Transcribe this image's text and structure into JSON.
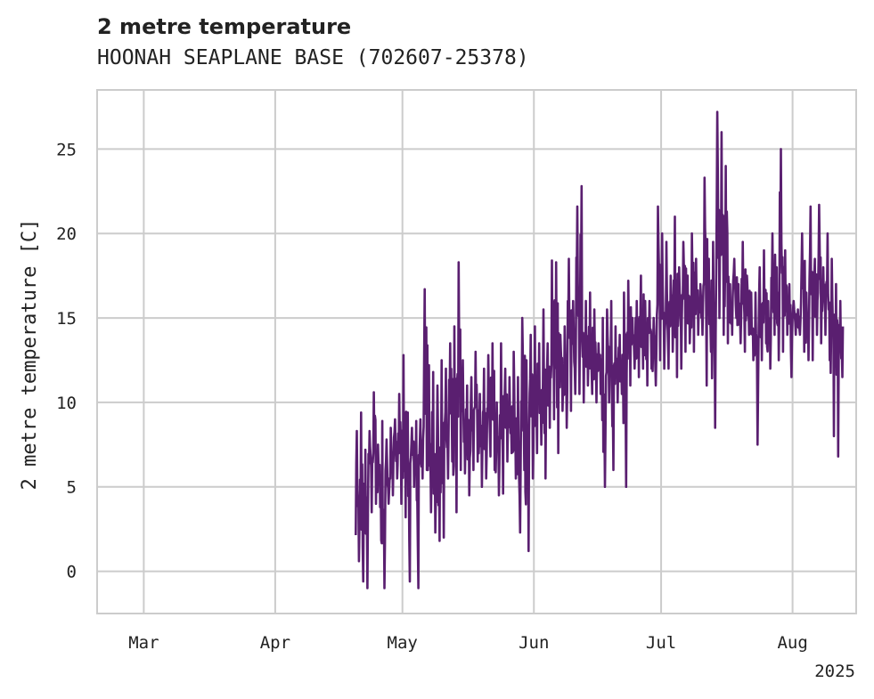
{
  "chart_data": {
    "type": "line",
    "title": "2 metre temperature",
    "subtitle": "HOONAH SEAPLANE BASE (702607-25378)",
    "ylabel": "2 metre temperature [C]",
    "xlabel": "",
    "year_label": "2025",
    "xlim": [
      "2025-02-18",
      "2025-08-16"
    ],
    "ylim": [
      -2.5,
      28.5
    ],
    "x_ticks": [
      {
        "date": "2025-03-01",
        "label": "Mar"
      },
      {
        "date": "2025-04-01",
        "label": "Apr"
      },
      {
        "date": "2025-05-01",
        "label": "May"
      },
      {
        "date": "2025-06-01",
        "label": "Jun"
      },
      {
        "date": "2025-07-01",
        "label": "Jul"
      },
      {
        "date": "2025-08-01",
        "label": "Aug"
      }
    ],
    "y_ticks": [
      0,
      5,
      10,
      15,
      20,
      25
    ],
    "grid": true,
    "color": "#5a1f70",
    "series": [
      {
        "name": "",
        "x": [
          "2025-04-20",
          "2025-04-21",
          "2025-04-22",
          "2025-04-23",
          "2025-04-24",
          "2025-04-25",
          "2025-04-26",
          "2025-04-27",
          "2025-04-28",
          "2025-04-29",
          "2025-04-30",
          "2025-05-01",
          "2025-05-02",
          "2025-05-03",
          "2025-05-04",
          "2025-05-05",
          "2025-05-06",
          "2025-05-07",
          "2025-05-08",
          "2025-05-09",
          "2025-05-10",
          "2025-05-11",
          "2025-05-12",
          "2025-05-13",
          "2025-05-14",
          "2025-05-15",
          "2025-05-16",
          "2025-05-17",
          "2025-05-18",
          "2025-05-19",
          "2025-05-20",
          "2025-05-21",
          "2025-05-22",
          "2025-05-23",
          "2025-05-24",
          "2025-05-25",
          "2025-05-26",
          "2025-05-27",
          "2025-05-28",
          "2025-05-29",
          "2025-05-30",
          "2025-05-31",
          "2025-06-01",
          "2025-06-02",
          "2025-06-03",
          "2025-06-04",
          "2025-06-05",
          "2025-06-06",
          "2025-06-07",
          "2025-06-08",
          "2025-06-09",
          "2025-06-10",
          "2025-06-11",
          "2025-06-12",
          "2025-06-13",
          "2025-06-14",
          "2025-06-15",
          "2025-06-16",
          "2025-06-17",
          "2025-06-18",
          "2025-06-19",
          "2025-06-20",
          "2025-06-21",
          "2025-06-22",
          "2025-06-23",
          "2025-06-24",
          "2025-06-25",
          "2025-06-26",
          "2025-06-27",
          "2025-06-28",
          "2025-06-29",
          "2025-06-30",
          "2025-07-01",
          "2025-07-02",
          "2025-07-03",
          "2025-07-04",
          "2025-07-05",
          "2025-07-06",
          "2025-07-07",
          "2025-07-08",
          "2025-07-09",
          "2025-07-10",
          "2025-07-11",
          "2025-07-12",
          "2025-07-13",
          "2025-07-14",
          "2025-07-15",
          "2025-07-16",
          "2025-07-17",
          "2025-07-18",
          "2025-07-19",
          "2025-07-20",
          "2025-07-21",
          "2025-07-22",
          "2025-07-23",
          "2025-07-24",
          "2025-07-25",
          "2025-07-26",
          "2025-07-27",
          "2025-07-28",
          "2025-07-29",
          "2025-07-30",
          "2025-07-31",
          "2025-08-01",
          "2025-08-02",
          "2025-08-03",
          "2025-08-04",
          "2025-08-05",
          "2025-08-06",
          "2025-08-07",
          "2025-08-08",
          "2025-08-09",
          "2025-08-10",
          "2025-08-11",
          "2025-08-12",
          "2025-08-13",
          "2025-08-14"
        ],
        "min": [
          0.6,
          -0.6,
          -1.0,
          3.5,
          4.0,
          3.8,
          -1.0,
          4.0,
          4.5,
          5.5,
          4.0,
          3.2,
          -0.6,
          5.0,
          -1.0,
          5.5,
          6.0,
          3.5,
          2.3,
          1.8,
          2.0,
          5.5,
          6.5,
          3.5,
          6.0,
          5.8,
          4.5,
          6.0,
          6.5,
          5.0,
          5.5,
          6.8,
          6.0,
          4.5,
          4.6,
          6.5,
          7.0,
          5.5,
          2.3,
          6.0,
          1.2,
          5.5,
          7.0,
          7.5,
          5.5,
          8.5,
          9.0,
          7.0,
          9.5,
          8.5,
          9.5,
          10.5,
          10.5,
          10.0,
          11.0,
          10.5,
          10.0,
          10.5,
          5.0,
          10.0,
          6.0,
          10.0,
          10.5,
          5.0,
          11.0,
          12.0,
          11.5,
          12.0,
          11.0,
          12.0,
          11.0,
          12.5,
          12.0,
          12.0,
          13.0,
          11.5,
          12.0,
          13.0,
          13.5,
          13.0,
          14.0,
          14.0,
          11.0,
          13.0,
          8.5,
          15.0,
          14.0,
          13.5,
          14.0,
          15.0,
          13.5,
          13.0,
          14.0,
          12.5,
          7.5,
          12.5,
          13.5,
          12.0,
          14.0,
          12.5,
          13.0,
          14.0,
          11.5,
          14.0,
          14.0,
          13.0,
          12.5,
          12.5,
          14.0,
          13.5,
          14.0,
          12.5,
          8.0,
          6.8,
          11.5
        ],
        "max": [
          8.3,
          9.4,
          7.2,
          8.3,
          10.6,
          7.5,
          8.9,
          7.8,
          8.5,
          9.0,
          10.5,
          12.8,
          9.4,
          8.5,
          8.9,
          9.0,
          16.7,
          12.2,
          11.8,
          11.0,
          12.5,
          12.0,
          13.5,
          14.5,
          18.3,
          12.5,
          11.0,
          11.5,
          13.0,
          10.5,
          12.0,
          12.8,
          13.5,
          10.0,
          13.5,
          12.0,
          11.5,
          13.0,
          11.5,
          15.0,
          12.5,
          14.0,
          14.5,
          13.5,
          15.5,
          13.5,
          18.4,
          18.3,
          14.0,
          14.5,
          18.5,
          16.0,
          21.6,
          22.8,
          16.0,
          16.5,
          15.5,
          13.5,
          15.0,
          15.5,
          16.0,
          14.5,
          14.0,
          16.5,
          17.2,
          15.0,
          16.0,
          17.5,
          16.0,
          16.0,
          15.0,
          21.6,
          20.0,
          19.5,
          17.5,
          21.0,
          18.0,
          19.5,
          17.5,
          20.0,
          18.5,
          17.0,
          23.3,
          18.5,
          19.5,
          27.2,
          26.0,
          24.0,
          17.0,
          18.5,
          17.0,
          19.5,
          17.5,
          16.5,
          16.5,
          18.0,
          19.0,
          16.0,
          20.0,
          18.0,
          25.0,
          19.0,
          17.0,
          16.0,
          15.5,
          20.0,
          16.5,
          21.6,
          18.5,
          21.7,
          18.0,
          20.0,
          18.5,
          17.0,
          16.0
        ]
      }
    ]
  }
}
